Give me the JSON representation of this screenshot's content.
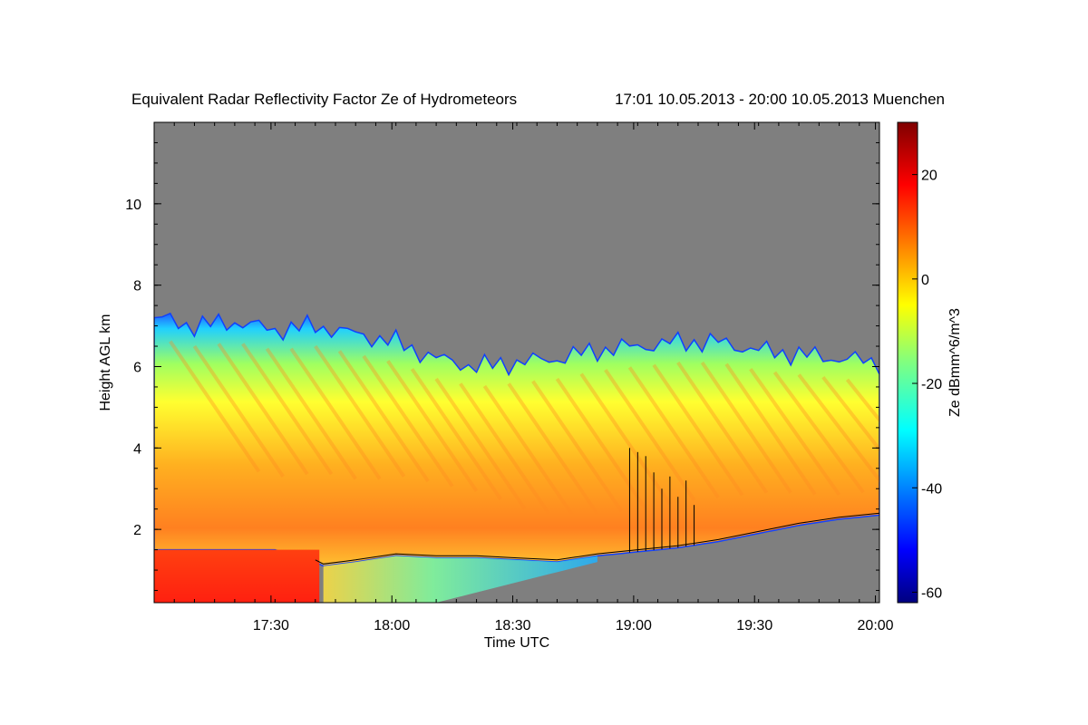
{
  "chart_data": {
    "type": "heatmap",
    "title": "Equivalent Radar Reflectivity Factor Ze of Hydrometeors",
    "subtitle": "17:01 10.05.2013 - 20:00 10.05.2013 Muenchen",
    "xlabel": "Time UTC",
    "ylabel": "Height AGL km",
    "x_ticks": [
      "17:30",
      "18:00",
      "18:30",
      "19:00",
      "19:30",
      "20:00"
    ],
    "x_tick_minutes": [
      29,
      59,
      89,
      119,
      149,
      179
    ],
    "xlim_minutes": [
      0,
      180
    ],
    "y_ticks": [
      "2",
      "4",
      "6",
      "8",
      "10"
    ],
    "y_tick_values": [
      2,
      4,
      6,
      8,
      10
    ],
    "ylim": [
      0.2,
      12
    ],
    "colorbar": {
      "label": "Ze dBmm^6/m^3",
      "ticks": [
        "20",
        "0",
        "-20",
        "-40",
        "-60"
      ],
      "tick_values": [
        20,
        0,
        -20,
        -40,
        -60
      ],
      "range": [
        -62,
        30
      ],
      "no_data_color": "#7f7f7f"
    },
    "echo_top_km": [
      {
        "minute": 0,
        "top": 7.2
      },
      {
        "minute": 10,
        "top": 7.0
      },
      {
        "minute": 20,
        "top": 7.1
      },
      {
        "minute": 30,
        "top": 6.9
      },
      {
        "minute": 40,
        "top": 7.0
      },
      {
        "minute": 50,
        "top": 6.8
      },
      {
        "minute": 60,
        "top": 6.6
      },
      {
        "minute": 70,
        "top": 6.2
      },
      {
        "minute": 80,
        "top": 6.0
      },
      {
        "minute": 90,
        "top": 6.1
      },
      {
        "minute": 100,
        "top": 6.2
      },
      {
        "minute": 110,
        "top": 6.4
      },
      {
        "minute": 120,
        "top": 6.5
      },
      {
        "minute": 130,
        "top": 6.6
      },
      {
        "minute": 140,
        "top": 6.6
      },
      {
        "minute": 150,
        "top": 6.4
      },
      {
        "minute": 160,
        "top": 6.3
      },
      {
        "minute": 170,
        "top": 6.2
      },
      {
        "minute": 180,
        "top": 6.1
      }
    ],
    "cloud_base_km": [
      {
        "minute": 0,
        "base": 1.5
      },
      {
        "minute": 10,
        "base": 1.5
      },
      {
        "minute": 20,
        "base": 1.5
      },
      {
        "minute": 30,
        "base": 1.5
      },
      {
        "minute": 40,
        "base": 1.2
      },
      {
        "minute": 42,
        "base": 1.1
      },
      {
        "minute": 50,
        "base": 1.2
      },
      {
        "minute": 60,
        "base": 1.35
      },
      {
        "minute": 70,
        "base": 1.3
      },
      {
        "minute": 80,
        "base": 1.3
      },
      {
        "minute": 90,
        "base": 1.25
      },
      {
        "minute": 100,
        "base": 1.2
      },
      {
        "minute": 110,
        "base": 1.35
      },
      {
        "minute": 120,
        "base": 1.45
      },
      {
        "minute": 130,
        "base": 1.55
      },
      {
        "minute": 140,
        "base": 1.7
      },
      {
        "minute": 150,
        "base": 1.9
      },
      {
        "minute": 160,
        "base": 2.1
      },
      {
        "minute": 170,
        "base": 2.25
      },
      {
        "minute": 180,
        "base": 2.35
      }
    ],
    "rain_spikes_km": [
      {
        "minute": 118,
        "top": 4.0
      },
      {
        "minute": 120,
        "top": 3.9
      },
      {
        "minute": 122,
        "top": 3.8
      },
      {
        "minute": 124,
        "top": 3.4
      },
      {
        "minute": 126,
        "top": 3.0
      },
      {
        "minute": 128,
        "top": 3.3
      },
      {
        "minute": 130,
        "top": 2.8
      },
      {
        "minute": 132,
        "top": 3.2
      },
      {
        "minute": 134,
        "top": 2.6
      }
    ]
  }
}
